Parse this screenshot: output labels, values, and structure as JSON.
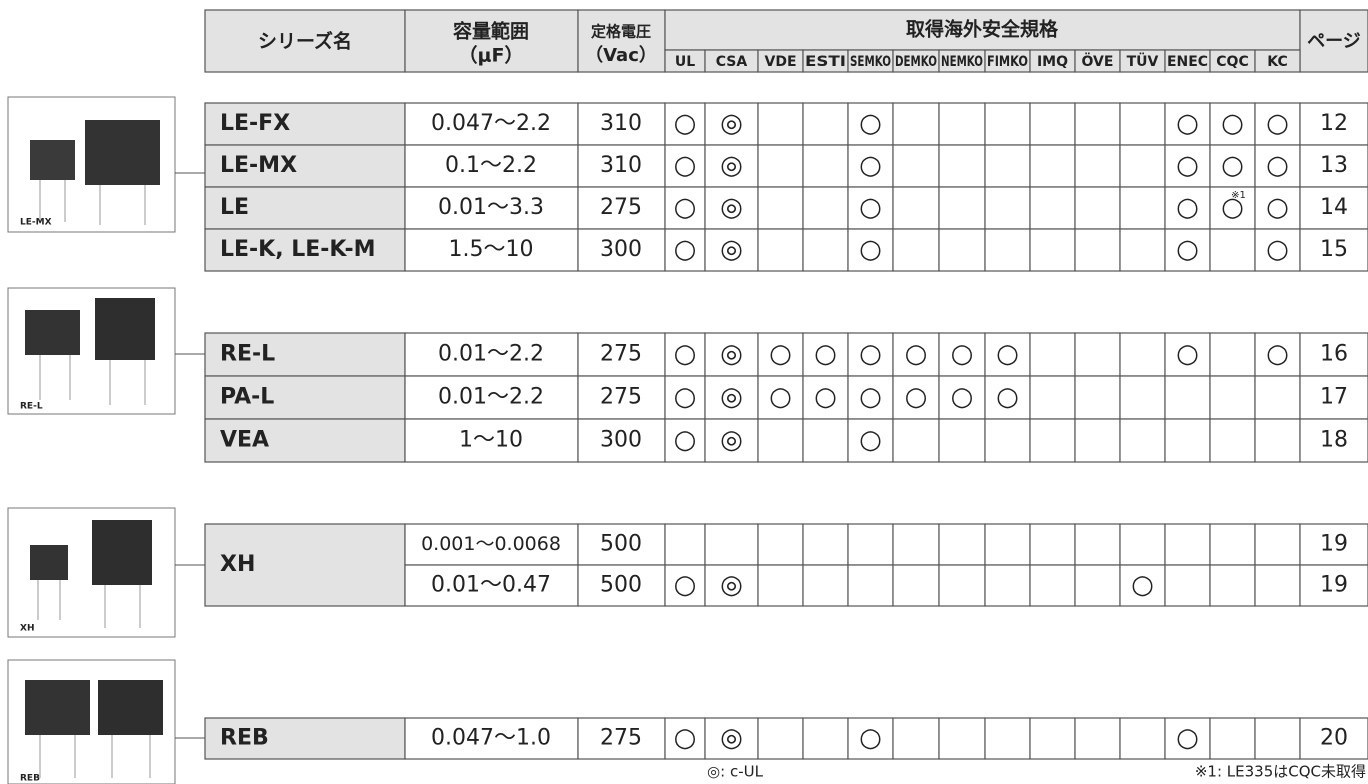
{
  "header": {
    "series": "シリーズ名",
    "capacitance": "容量範囲",
    "capacitance_unit": "（μF）",
    "voltage": "定格電圧",
    "voltage_unit": "（Vac）",
    "standards": "取得海外安全規格",
    "page": "ページ",
    "columns": [
      "UL",
      "CSA",
      "VDE",
      "ESTI",
      "SEMKO",
      "DEMKO",
      "NEMKO",
      "FIMKO",
      "IMQ",
      "ÖVE",
      "TÜV",
      "ENEC",
      "CQC",
      "KC"
    ]
  },
  "groups": [
    {
      "caption": "LE-MX",
      "rows": [
        {
          "name": "LE-FX",
          "range": "0.047〜2.2",
          "voltage": "310",
          "marks": {
            "UL": "○",
            "CSA": "◎",
            "SEMKO": "○",
            "ENEC": "○",
            "CQC": "○",
            "KC": "○"
          },
          "page": "12"
        },
        {
          "name": "LE-MX",
          "range": "0.1〜2.2",
          "voltage": "310",
          "marks": {
            "UL": "○",
            "CSA": "◎",
            "SEMKO": "○",
            "ENEC": "○",
            "CQC": "○",
            "KC": "○"
          },
          "page": "13"
        },
        {
          "name": "LE",
          "range": "0.01〜3.3",
          "voltage": "275",
          "marks": {
            "UL": "○",
            "CSA": "◎",
            "SEMKO": "○",
            "ENEC": "○",
            "CQC": "○",
            "KC": "○"
          },
          "notes": {
            "CQC": "※1"
          },
          "page": "14"
        },
        {
          "name": "LE-K, LE-K-M",
          "range": "1.5〜10",
          "voltage": "300",
          "marks": {
            "UL": "○",
            "CSA": "◎",
            "SEMKO": "○",
            "ENEC": "○",
            "KC": "○"
          },
          "page": "15"
        }
      ]
    },
    {
      "caption": "RE-L",
      "rows": [
        {
          "name": "RE-L",
          "range": "0.01〜2.2",
          "voltage": "275",
          "marks": {
            "UL": "○",
            "CSA": "◎",
            "VDE": "○",
            "ESTI": "○",
            "SEMKO": "○",
            "DEMKO": "○",
            "NEMKO": "○",
            "FIMKO": "○",
            "ENEC": "○",
            "KC": "○"
          },
          "page": "16"
        },
        {
          "name": "PA-L",
          "range": "0.01〜2.2",
          "voltage": "275",
          "marks": {
            "UL": "○",
            "CSA": "◎",
            "VDE": "○",
            "ESTI": "○",
            "SEMKO": "○",
            "DEMKO": "○",
            "NEMKO": "○",
            "FIMKO": "○"
          },
          "page": "17"
        },
        {
          "name": "VEA",
          "range": "1〜10",
          "voltage": "300",
          "marks": {
            "UL": "○",
            "CSA": "◎",
            "SEMKO": "○"
          },
          "page": "18"
        }
      ]
    },
    {
      "caption": "XH",
      "name": "XH",
      "rows": [
        {
          "range": "0.001〜0.0068",
          "voltage": "500",
          "marks": {},
          "page": "19"
        },
        {
          "range": "0.01〜0.47",
          "voltage": "500",
          "marks": {
            "UL": "○",
            "CSA": "◎",
            "TÜV": "○"
          },
          "page": "19"
        }
      ]
    },
    {
      "caption": "REB",
      "rows": [
        {
          "name": "REB",
          "range": "0.047〜1.0",
          "voltage": "275",
          "marks": {
            "UL": "○",
            "CSA": "◎",
            "SEMKO": "○",
            "ENEC": "○"
          },
          "page": "20"
        }
      ]
    }
  ],
  "footer": {
    "legend": "◎: c-UL",
    "note": "※1: LE335はCQC未取得"
  }
}
